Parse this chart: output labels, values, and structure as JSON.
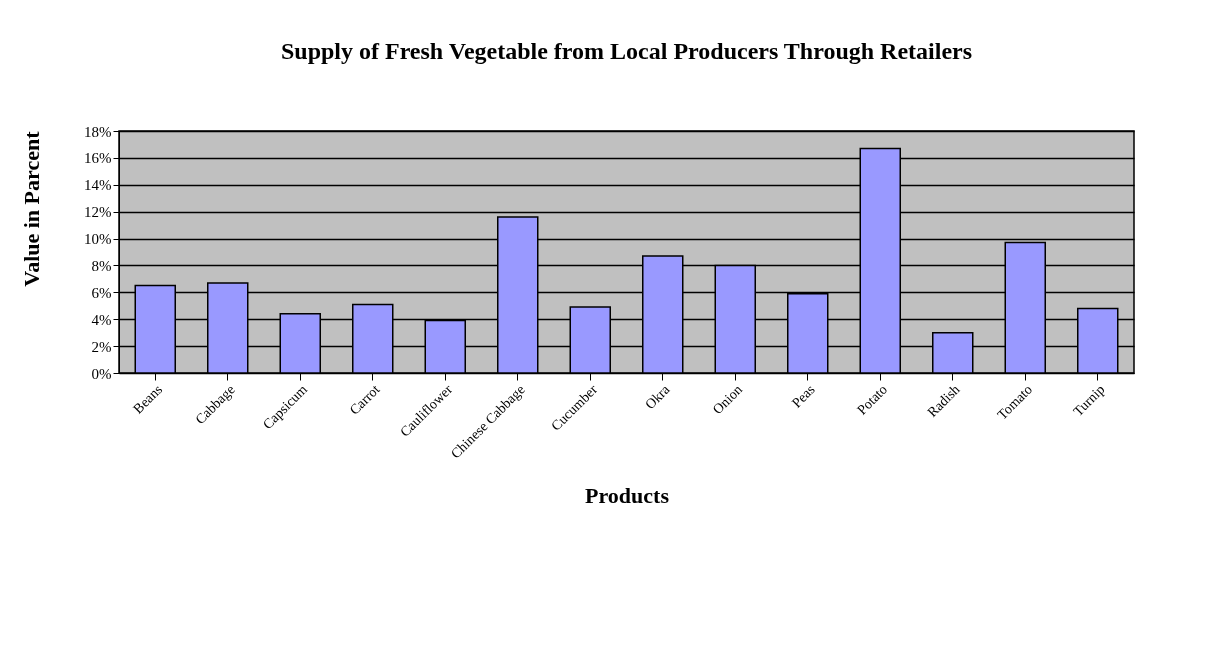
{
  "chart_data": {
    "type": "bar",
    "title": "Supply of Fresh Vegetable from Local Producers Through Retailers",
    "xlabel": "Products",
    "ylabel": "Value in Parcent",
    "categories": [
      "Beans",
      "Cabbage",
      "Capsicum",
      "Carrot",
      "Cauliflower",
      "Chinese Cabbage",
      "Cucumber",
      "Okra",
      "Onion",
      "Peas",
      "Potato",
      "Radish",
      "Tomato",
      "Turnip"
    ],
    "values": [
      6.5,
      6.7,
      4.4,
      5.1,
      3.9,
      11.6,
      4.9,
      8.7,
      8.0,
      5.9,
      16.7,
      3.0,
      9.7,
      4.8
    ],
    "color": "#9999ff",
    "ylim": [
      0,
      18
    ],
    "yticks": [
      {
        "value": 0,
        "label": "0%"
      },
      {
        "value": 2,
        "label": "2%"
      },
      {
        "value": 4,
        "label": "4%"
      },
      {
        "value": 6,
        "label": "6%"
      },
      {
        "value": 8,
        "label": "8%"
      },
      {
        "value": 10,
        "label": "10%"
      },
      {
        "value": 12,
        "label": "12%"
      },
      {
        "value": 14,
        "label": "14%"
      },
      {
        "value": 16,
        "label": "16%"
      },
      {
        "value": 18,
        "label": "18%"
      }
    ],
    "grid": "y"
  }
}
